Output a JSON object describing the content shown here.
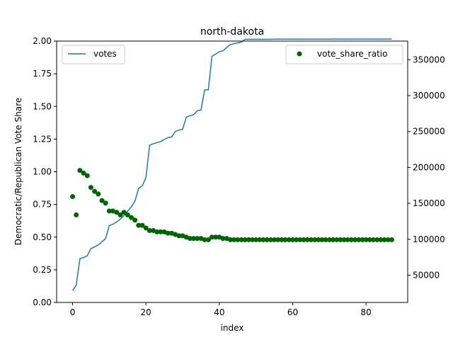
{
  "chart_data": {
    "type": "line",
    "title": "north-dakota",
    "xlabel": "index",
    "ylabel": "Democratic/Republican Vote Share",
    "xlim": [
      -4.35,
      91.35
    ],
    "ylim": [
      0,
      2
    ],
    "y2lim": [
      12000,
      376000
    ],
    "x_ticks": [
      "0",
      "20",
      "40",
      "60",
      "80"
    ],
    "y_ticks": [
      "0.00",
      "0.25",
      "0.50",
      "0.75",
      "1.00",
      "1.25",
      "1.50",
      "1.75",
      "2.00"
    ],
    "y2_ticks": [
      "50000",
      "100000",
      "150000",
      "200000",
      "250000",
      "300000",
      "350000"
    ],
    "colors": {
      "votes": "#1f77b4",
      "vote_share_ratio": "#006400"
    },
    "legend": [
      {
        "label": "votes",
        "placement": "upper left",
        "marker": "line"
      },
      {
        "label": "vote_share_ratio",
        "placement": "upper right",
        "marker": "dot"
      }
    ],
    "series": [
      {
        "name": "votes",
        "axis": "right",
        "kind": "line",
        "x": [
          0,
          1,
          2,
          3,
          4,
          5,
          6,
          7,
          8,
          9,
          10,
          11,
          12,
          13,
          14,
          15,
          16,
          17,
          18,
          19,
          20,
          21,
          22,
          23,
          24,
          25,
          26,
          27,
          28,
          29,
          30,
          31,
          32,
          33,
          34,
          35,
          36,
          37,
          38,
          39,
          40,
          41,
          42,
          43,
          44,
          45,
          46,
          47,
          48,
          49,
          50,
          51,
          52,
          53,
          54,
          55,
          56,
          57,
          58,
          59,
          60,
          61,
          62,
          63,
          64,
          65,
          66,
          67,
          68,
          69,
          70,
          71,
          72,
          73,
          74,
          75,
          76,
          77,
          78,
          79,
          80,
          81,
          82,
          83,
          84,
          85,
          86,
          87
        ],
        "values": [
          28500,
          36000,
          73000,
          74500,
          77000,
          87000,
          89500,
          92000,
          96500,
          101000,
          119000,
          121000,
          124000,
          128000,
          133000,
          139000,
          145000,
          153000,
          171000,
          174500,
          186000,
          231000,
          233000,
          234500,
          236000,
          239000,
          241500,
          242500,
          250000,
          252000,
          253000,
          270000,
          272000,
          273500,
          279000,
          280000,
          308000,
          308000,
          355000,
          358000,
          361000,
          362500,
          367000,
          371000,
          372500,
          373500,
          374500,
          378500,
          378500,
          378500,
          378500,
          378500,
          378500,
          378500,
          378500,
          378700,
          378700,
          378700,
          378700,
          378700,
          378700,
          378700,
          378700,
          378700,
          378700,
          378700,
          378700,
          378700,
          378700,
          378700,
          378700,
          378800,
          378800,
          378800,
          378800,
          378800,
          378800,
          378800,
          378800,
          378800,
          378800,
          378800,
          378800,
          378800,
          378800,
          378800,
          378800,
          378800
        ]
      },
      {
        "name": "vote_share_ratio",
        "axis": "left",
        "kind": "scatter",
        "x": [
          0,
          1,
          2,
          3,
          4,
          5,
          6,
          7,
          8,
          9,
          10,
          11,
          12,
          13,
          14,
          15,
          16,
          17,
          18,
          19,
          20,
          21,
          22,
          23,
          24,
          25,
          26,
          27,
          28,
          29,
          30,
          31,
          32,
          33,
          34,
          35,
          36,
          37,
          38,
          39,
          40,
          41,
          42,
          43,
          44,
          45,
          46,
          47,
          48,
          49,
          50,
          51,
          52,
          53,
          54,
          55,
          56,
          57,
          58,
          59,
          60,
          61,
          62,
          63,
          64,
          65,
          66,
          67,
          68,
          69,
          70,
          71,
          72,
          73,
          74,
          75,
          76,
          77,
          78,
          79,
          80,
          81,
          82,
          83,
          84,
          85,
          86,
          87
        ],
        "values": [
          0.81,
          0.67,
          1.01,
          0.99,
          0.97,
          0.88,
          0.85,
          0.83,
          0.78,
          0.76,
          0.7,
          0.7,
          0.69,
          0.67,
          0.69,
          0.67,
          0.65,
          0.63,
          0.59,
          0.59,
          0.57,
          0.55,
          0.55,
          0.54,
          0.54,
          0.54,
          0.53,
          0.53,
          0.52,
          0.51,
          0.51,
          0.5,
          0.49,
          0.49,
          0.49,
          0.49,
          0.48,
          0.48,
          0.5,
          0.5,
          0.5,
          0.49,
          0.49,
          0.48,
          0.48,
          0.48,
          0.48,
          0.48,
          0.48,
          0.48,
          0.48,
          0.48,
          0.48,
          0.48,
          0.48,
          0.48,
          0.48,
          0.48,
          0.48,
          0.48,
          0.48,
          0.48,
          0.48,
          0.48,
          0.48,
          0.48,
          0.48,
          0.48,
          0.48,
          0.48,
          0.48,
          0.48,
          0.48,
          0.48,
          0.48,
          0.48,
          0.48,
          0.48,
          0.48,
          0.48,
          0.48,
          0.48,
          0.48,
          0.48,
          0.48,
          0.48,
          0.48,
          0.48
        ]
      }
    ]
  }
}
